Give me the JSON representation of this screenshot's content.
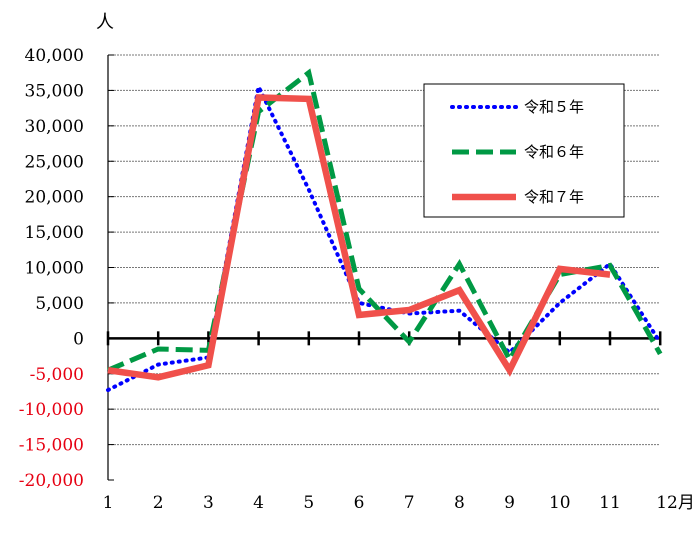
{
  "chart_data": {
    "type": "line",
    "title": "",
    "y_unit": "人",
    "x_unit": "月",
    "categories": [
      "1",
      "2",
      "3",
      "4",
      "5",
      "6",
      "7",
      "8",
      "9",
      "10",
      "11",
      "12"
    ],
    "ylim": [
      -20000,
      40000
    ],
    "yticks": [
      40000,
      35000,
      30000,
      25000,
      20000,
      15000,
      10000,
      5000,
      0,
      -5000,
      -10000,
      -15000,
      -20000
    ],
    "ytick_labels": [
      "40,000",
      "35,000",
      "30,000",
      "25,000",
      "20,000",
      "15,000",
      "10,000",
      "5,000",
      "0",
      "-5,000",
      "-10,000",
      "-15,000",
      "-20,000"
    ],
    "negative_label_color": "#e60012",
    "grid": true,
    "legend_position": "top-right",
    "series": [
      {
        "name": "令和５年",
        "color": "#0000ff",
        "style": "dotted",
        "values": [
          -7300,
          -3700,
          -2700,
          35500,
          21000,
          5000,
          3500,
          3900,
          -2000,
          5000,
          10500,
          -600
        ]
      },
      {
        "name": "令和６年",
        "color": "#009944",
        "style": "dashed",
        "values": [
          -4500,
          -1500,
          -1700,
          32000,
          37500,
          7000,
          -500,
          10500,
          -3000,
          9000,
          10300,
          -2200
        ]
      },
      {
        "name": "令和７年",
        "color": "#f0504b",
        "style": "solid",
        "values": [
          -4500,
          -5500,
          -3800,
          34000,
          33800,
          3300,
          4000,
          6800,
          -4500,
          9800,
          9000,
          null
        ]
      }
    ]
  }
}
